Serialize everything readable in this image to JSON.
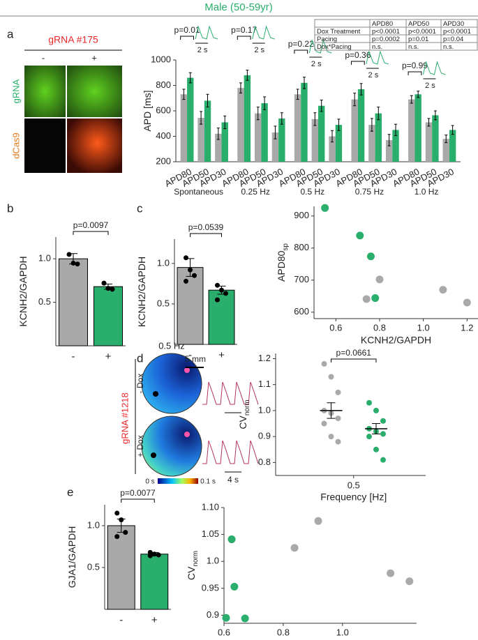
{
  "figure": {
    "title": "Male (50-59yr)",
    "panel_labels": [
      "a",
      "b",
      "c",
      "d",
      "e"
    ]
  },
  "images": {
    "title": "gRNA #175",
    "columns": [
      "-",
      "+"
    ],
    "rows": [
      "gRNA",
      "dCas9"
    ]
  },
  "heatmaps": {
    "title": "0.5 Hz",
    "scale": "5 mm",
    "side_label": "gRNA #1218",
    "rows": [
      "- Dox",
      "+ Dox"
    ],
    "colorbar": [
      "0 s",
      "0.1 s"
    ],
    "trace_scale": "4 s"
  },
  "chart_data": [
    {
      "type": "bar",
      "ylabel": "APD [ms]",
      "categories": [
        "APD80",
        "APD50",
        "APD30",
        "APD80",
        "APD50",
        "APD30",
        "APD80",
        "APD50",
        "APD30",
        "APD80",
        "APD50",
        "APD30",
        "APD80",
        "APD50",
        "APD30"
      ],
      "groups": [
        "Spontaneous",
        "0.25 Hz",
        "0.5 Hz",
        "0.75 Hz",
        "1.0 Hz"
      ],
      "series": [
        {
          "color": "#a9a9a9",
          "values": [
            730,
            545,
            420,
            780,
            580,
            430,
            730,
            535,
            400,
            690,
            490,
            370,
            690,
            510,
            380
          ],
          "errors": [
            40,
            50,
            45,
            40,
            50,
            50,
            40,
            50,
            45,
            50,
            50,
            45,
            30,
            30,
            30
          ]
        },
        {
          "color": "#2aae6c",
          "values": [
            860,
            680,
            510,
            880,
            660,
            540,
            820,
            640,
            490,
            770,
            580,
            450,
            730,
            565,
            450
          ],
          "errors": [
            40,
            50,
            50,
            40,
            50,
            45,
            45,
            45,
            45,
            45,
            50,
            45,
            25,
            35,
            35
          ]
        }
      ],
      "ylim": [
        200,
        1000
      ],
      "yticks": [
        200,
        400,
        600,
        800,
        1000
      ],
      "annotations": [
        "p=0.01",
        "p=0.17",
        "p=0.22",
        "p=0.36",
        "p=0.99"
      ],
      "scale_labels": [
        "2 s",
        "2 s",
        "2 s",
        "2 s",
        "2 s"
      ],
      "table": {
        "header": [
          "APD80",
          "APD50",
          "APD30"
        ],
        "rows": [
          [
            "Dox Treatment",
            "p<0.0001",
            "p<0.0001",
            "p<0.0001"
          ],
          [
            "Pacing",
            "p=0.0002",
            "p=0.01",
            "p=0.04"
          ],
          [
            "Dox*Pacing",
            "n.s.",
            "n.s.",
            "n.s."
          ]
        ]
      }
    },
    {
      "type": "bar",
      "ylabel": "KCNH2/GAPDH",
      "categories": [
        "-",
        "+"
      ],
      "values": [
        1,
        0.68
      ],
      "errors": [
        0.06,
        0.03
      ],
      "colors": [
        "#a9a9a9",
        "#2aae6c"
      ],
      "points": [
        [
          1.05,
          0.95,
          0.94
        ],
        [
          0.72,
          0.66,
          0.65
        ]
      ],
      "ylim": [
        0,
        1.25
      ],
      "yticks": [
        0.5,
        {
          "value": 1,
          "label": "1.0"
        }
      ],
      "annotation": "p=0.0097"
    },
    {
      "type": "bar",
      "ylabel": "KCNH2/GAPDH",
      "categories": [
        "-",
        "+"
      ],
      "values": [
        0.95,
        0.67
      ],
      "errors": [
        0.11,
        0.05
      ],
      "colors": [
        "#a9a9a9",
        "#2aae6c"
      ],
      "points": [
        [
          1.07,
          0.92,
          0.85,
          0.78
        ],
        [
          0.73,
          0.67,
          0.63,
          0.55
        ]
      ],
      "ylim": [
        0,
        1.3
      ],
      "yticks": [
        0.5,
        {
          "value": 1,
          "label": "1.0"
        }
      ],
      "annotation": "p=0.0539"
    },
    {
      "type": "scatter",
      "xlabel": "KCNH2/GAPDH",
      "ylabel": "APD80",
      "ylabel_sub": "sp",
      "series": [
        {
          "color": "#2aae6c",
          "x": [
            0.55,
            0.71,
            0.76,
            0.78
          ],
          "y": [
            925,
            839,
            774,
            644
          ]
        },
        {
          "color": "#a9a9a9",
          "x": [
            0.74,
            0.8,
            1.09,
            1.2
          ],
          "y": [
            641,
            702,
            670,
            630
          ]
        }
      ],
      "xlim": [
        0.5,
        1.25
      ],
      "xticks": [
        0.6,
        0.8,
        {
          "value": 1,
          "label": "1.0"
        },
        1.2
      ],
      "ylim": [
        580,
        930
      ],
      "yticks": [
        600,
        700,
        800,
        900
      ]
    },
    {
      "type": "dot",
      "xlabel": "Frequency [Hz]",
      "ylabel": "CV",
      "ylabel_sub": "norm",
      "categories": [
        "0.5"
      ],
      "series": [
        {
          "color": "#a9a9a9",
          "mean": 1,
          "error": 0.03,
          "points": [
            1.18,
            1.13,
            1.07,
            1.0,
            0.99,
            0.97,
            0.95,
            0.9,
            0.88
          ]
        },
        {
          "color": "#2aae6c",
          "mean": 0.93,
          "error": 0.02,
          "points": [
            1.03,
            1.0,
            0.96,
            0.93,
            0.92,
            0.91,
            0.9,
            0.85,
            0.81
          ]
        }
      ],
      "ylim": [
        0.75,
        1.22
      ],
      "yticks": [
        0.8,
        0.9,
        {
          "value": 1,
          "label": "1.0"
        },
        1.1,
        1.2
      ],
      "annotation": "p=0.0661"
    },
    {
      "type": "bar",
      "ylabel": "GJA1/GAPDH",
      "categories": [
        "-",
        "+"
      ],
      "values": [
        1,
        0.66
      ],
      "errors": [
        0.08,
        0.02
      ],
      "colors": [
        "#a9a9a9",
        "#2aae6c"
      ],
      "points": [
        [
          1.15,
          1.07,
          0.92,
          0.87
        ],
        [
          0.68,
          0.66,
          0.65,
          0.64
        ]
      ],
      "ylim": [
        0,
        1.25
      ],
      "yticks": [
        0.5,
        {
          "value": 1,
          "label": "1.0"
        }
      ],
      "annotation": "p=0.0077"
    },
    {
      "type": "scatter",
      "xlabel": "GJA1/GAPDH",
      "ylabel": "CV",
      "ylabel_sub": "norm",
      "series": [
        {
          "color": "#2aae6c",
          "x": [
            0.626,
            0.635,
            0.607,
            0.671
          ],
          "y": [
            1.041,
            0.953,
            0.895,
            0.894
          ]
        },
        {
          "color": "#a9a9a9",
          "x": [
            0.838,
            0.918,
            1.162,
            1.226
          ],
          "y": [
            1.025,
            1.075,
            0.978,
            0.963
          ]
        }
      ],
      "xlim": [
        0.6,
        1.25
      ],
      "xticks": [
        0.6,
        0.8,
        {
          "value": 1,
          "label": "1.0"
        }
      ],
      "ylim": [
        0.885,
        1.1
      ],
      "yticks": [
        0.9,
        0.95,
        {
          "value": 1,
          "label": "1.0"
        },
        1.05,
        {
          "value": 1.1,
          "label": "1.10"
        }
      ]
    }
  ]
}
